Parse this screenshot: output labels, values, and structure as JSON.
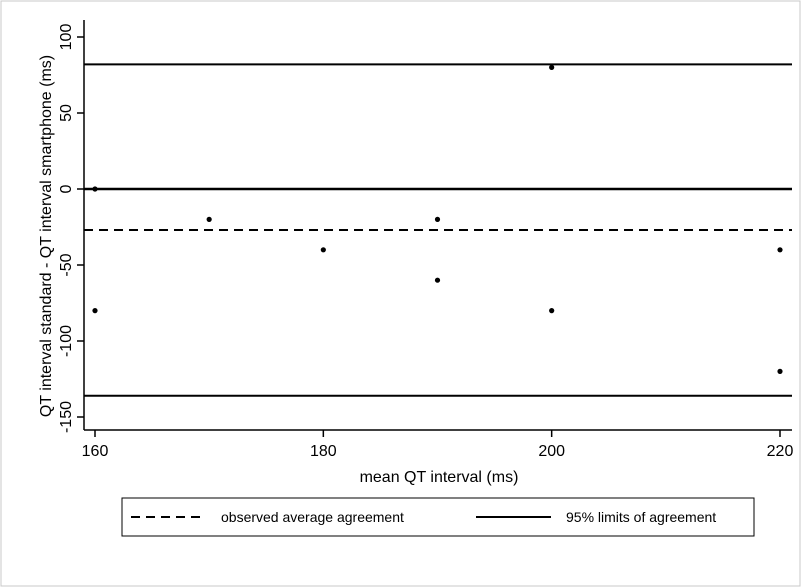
{
  "chart_data": {
    "type": "scatter",
    "title": "",
    "xlabel": "mean QT interval (ms)",
    "ylabel": "QT interval standard - QT interval smartphone (ms)",
    "xlim": [
      160,
      220
    ],
    "ylim": [
      -150,
      100
    ],
    "xticks": [
      160,
      180,
      200,
      220
    ],
    "yticks": [
      -150,
      -100,
      -50,
      0,
      50,
      100
    ],
    "grid": false,
    "points": [
      {
        "x": 160,
        "y": 0
      },
      {
        "x": 160,
        "y": -80
      },
      {
        "x": 170,
        "y": -20
      },
      {
        "x": 180,
        "y": -40
      },
      {
        "x": 190,
        "y": -20
      },
      {
        "x": 190,
        "y": -60
      },
      {
        "x": 200,
        "y": 80
      },
      {
        "x": 200,
        "y": -80
      },
      {
        "x": 220,
        "y": -40
      },
      {
        "x": 220,
        "y": -120
      }
    ],
    "reference_lines": [
      {
        "y": 82,
        "style": "solid",
        "series": "95% limits of agreement"
      },
      {
        "y": 0,
        "style": "solid-thick",
        "series": ""
      },
      {
        "y": -27,
        "style": "dashed",
        "series": "observed average agreement"
      },
      {
        "y": -136,
        "style": "solid",
        "series": "95% limits of agreement"
      }
    ],
    "legend": {
      "position": "bottom",
      "entries": [
        {
          "label": "observed average agreement",
          "style": "dashed"
        },
        {
          "label": "95% limits of agreement",
          "style": "solid"
        }
      ]
    },
    "colors": {
      "line": "#000000",
      "point": "#000000",
      "frame": "#c8c8c8"
    }
  }
}
